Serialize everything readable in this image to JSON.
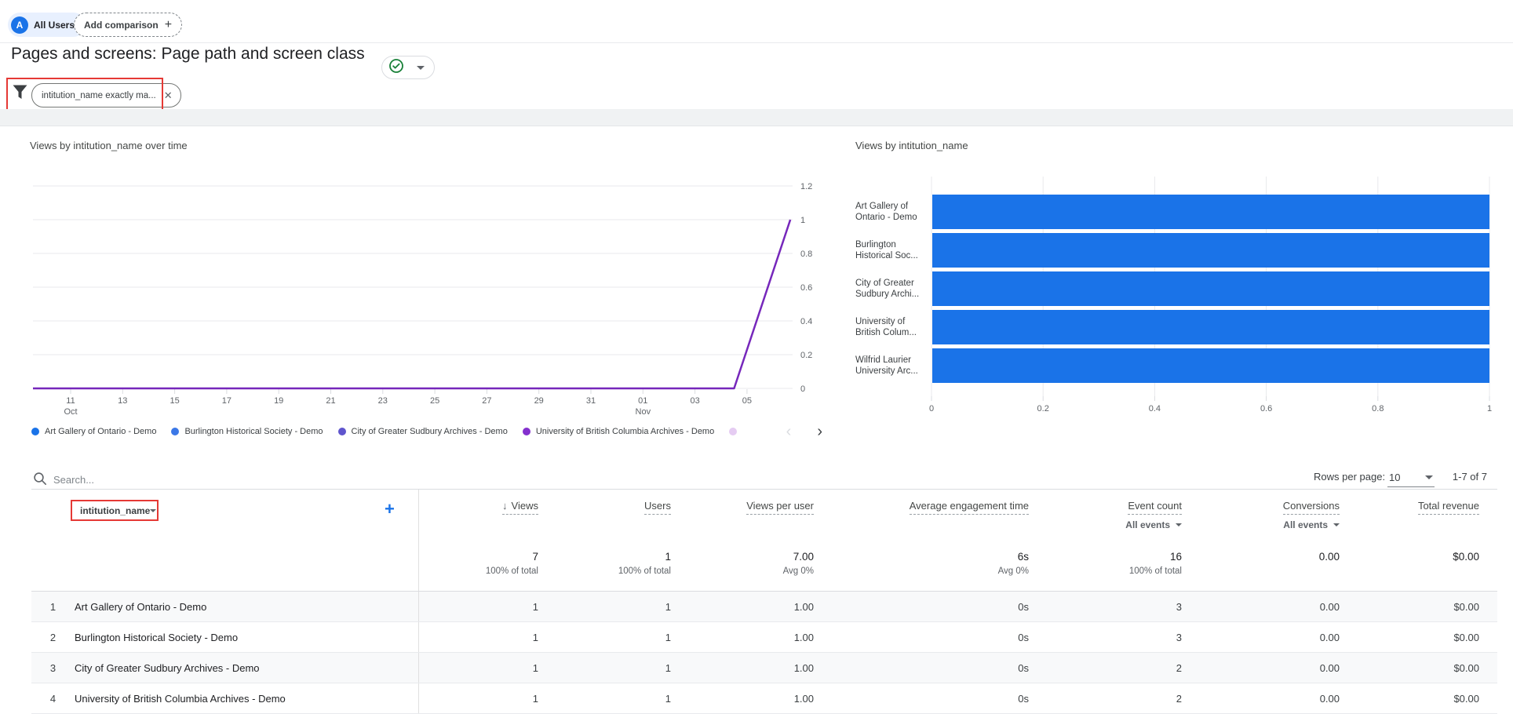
{
  "colors": {
    "accent_blue": "#1a73e8",
    "bar_fill": "#1a73e8",
    "line_series": "#7627bb",
    "annotation_red": "#e53935",
    "check_green": "#188038",
    "legend_overflow_dot": "#e5ccf2"
  },
  "header": {
    "audience_chip_label": "All Users",
    "audience_avatar_letter": "A",
    "add_comparison_label": "Add comparison",
    "page_title": "Pages and screens: Page path and screen class",
    "filter_chip_label": "intitution_name exactly ma..."
  },
  "chart_data": [
    {
      "type": "line",
      "title": "Views by intitution_name over time",
      "ylim": [
        0,
        1.2
      ],
      "y_ticks": [
        "1.2",
        "1",
        "0.8",
        "0.6",
        "0.4",
        "0.2",
        "0"
      ],
      "x_ticks": [
        {
          "d": "11",
          "m": "Oct"
        },
        {
          "d": "13"
        },
        {
          "d": "15"
        },
        {
          "d": "17"
        },
        {
          "d": "19"
        },
        {
          "d": "21"
        },
        {
          "d": "23"
        },
        {
          "d": "25"
        },
        {
          "d": "27"
        },
        {
          "d": "29"
        },
        {
          "d": "31"
        },
        {
          "d": "01",
          "m": "Nov"
        },
        {
          "d": "03"
        },
        {
          "d": "05"
        }
      ],
      "series": [
        {
          "name": "Art Gallery of Ontario - Demo",
          "color": "#1a73e8"
        },
        {
          "name": "Burlington Historical Society - Demo",
          "color": "#3b78e7"
        },
        {
          "name": "City of Greater Sudbury Archives - Demo",
          "color": "#5f55cd"
        },
        {
          "name": "University of British Columbia Archives - Demo",
          "color": "#8430ce"
        }
      ],
      "note": "all series flat at 0 across range; one purple series rises to 1 at period end",
      "visible_line": {
        "color": "#7627bb",
        "points_frac": [
          [
            0,
            0
          ],
          [
            0.923,
            0
          ],
          [
            0.997,
            1
          ]
        ]
      }
    },
    {
      "type": "bar",
      "title": "Views by intitution_name",
      "categories": [
        "Art Gallery of Ontario - Demo",
        "Burlington Historical Society - Demo",
        "City of Greater Sudbury Archives - Demo",
        "University of British Columbia Archives - Demo",
        "Wilfrid Laurier University Archives - Demo"
      ],
      "category_labels_2line": [
        [
          "Art Gallery of",
          "Ontario - Demo"
        ],
        [
          "Burlington",
          "Historical Soc..."
        ],
        [
          "City of Greater",
          "Sudbury Archi..."
        ],
        [
          "University of",
          "British Colum..."
        ],
        [
          "Wilfrid Laurier",
          "University Arc..."
        ]
      ],
      "values": [
        1,
        1,
        1,
        1,
        1
      ],
      "xlim": [
        0,
        1
      ],
      "x_ticks": [
        "0",
        "0.2",
        "0.4",
        "0.6",
        "0.8",
        "1"
      ],
      "bar_color": "#1a73e8"
    }
  ],
  "table": {
    "search_placeholder": "Search...",
    "rows_per_page_label": "Rows per page:",
    "rows_per_page_value": "10",
    "range_label": "1-7 of 7",
    "dimension_header": "intitution_name",
    "columns": [
      {
        "label": "Views",
        "sorted": true
      },
      {
        "label": "Users"
      },
      {
        "label": "Views per user"
      },
      {
        "label": "Average engagement time"
      },
      {
        "label": "Event count",
        "sub": "All events"
      },
      {
        "label": "Conversions",
        "sub": "All events"
      },
      {
        "label": "Total revenue"
      }
    ],
    "totals": [
      {
        "value": "7",
        "sub": "100% of total"
      },
      {
        "value": "1",
        "sub": "100% of total"
      },
      {
        "value": "7.00",
        "sub": "Avg 0%"
      },
      {
        "value": "6s",
        "sub": "Avg 0%"
      },
      {
        "value": "16",
        "sub": "100% of total"
      },
      {
        "value": "0.00",
        "sub": ""
      },
      {
        "value": "$0.00",
        "sub": ""
      }
    ],
    "rows": [
      {
        "num": "1",
        "name": "Art Gallery of Ontario - Demo",
        "values": [
          "1",
          "1",
          "1.00",
          "0s",
          "3",
          "0.00",
          "$0.00"
        ]
      },
      {
        "num": "2",
        "name": "Burlington Historical Society - Demo",
        "values": [
          "1",
          "1",
          "1.00",
          "0s",
          "3",
          "0.00",
          "$0.00"
        ]
      },
      {
        "num": "3",
        "name": "City of Greater Sudbury Archives - Demo",
        "values": [
          "1",
          "1",
          "1.00",
          "0s",
          "2",
          "0.00",
          "$0.00"
        ]
      },
      {
        "num": "4",
        "name": "University of British Columbia Archives - Demo",
        "values": [
          "1",
          "1",
          "1.00",
          "0s",
          "2",
          "0.00",
          "$0.00"
        ]
      }
    ]
  }
}
